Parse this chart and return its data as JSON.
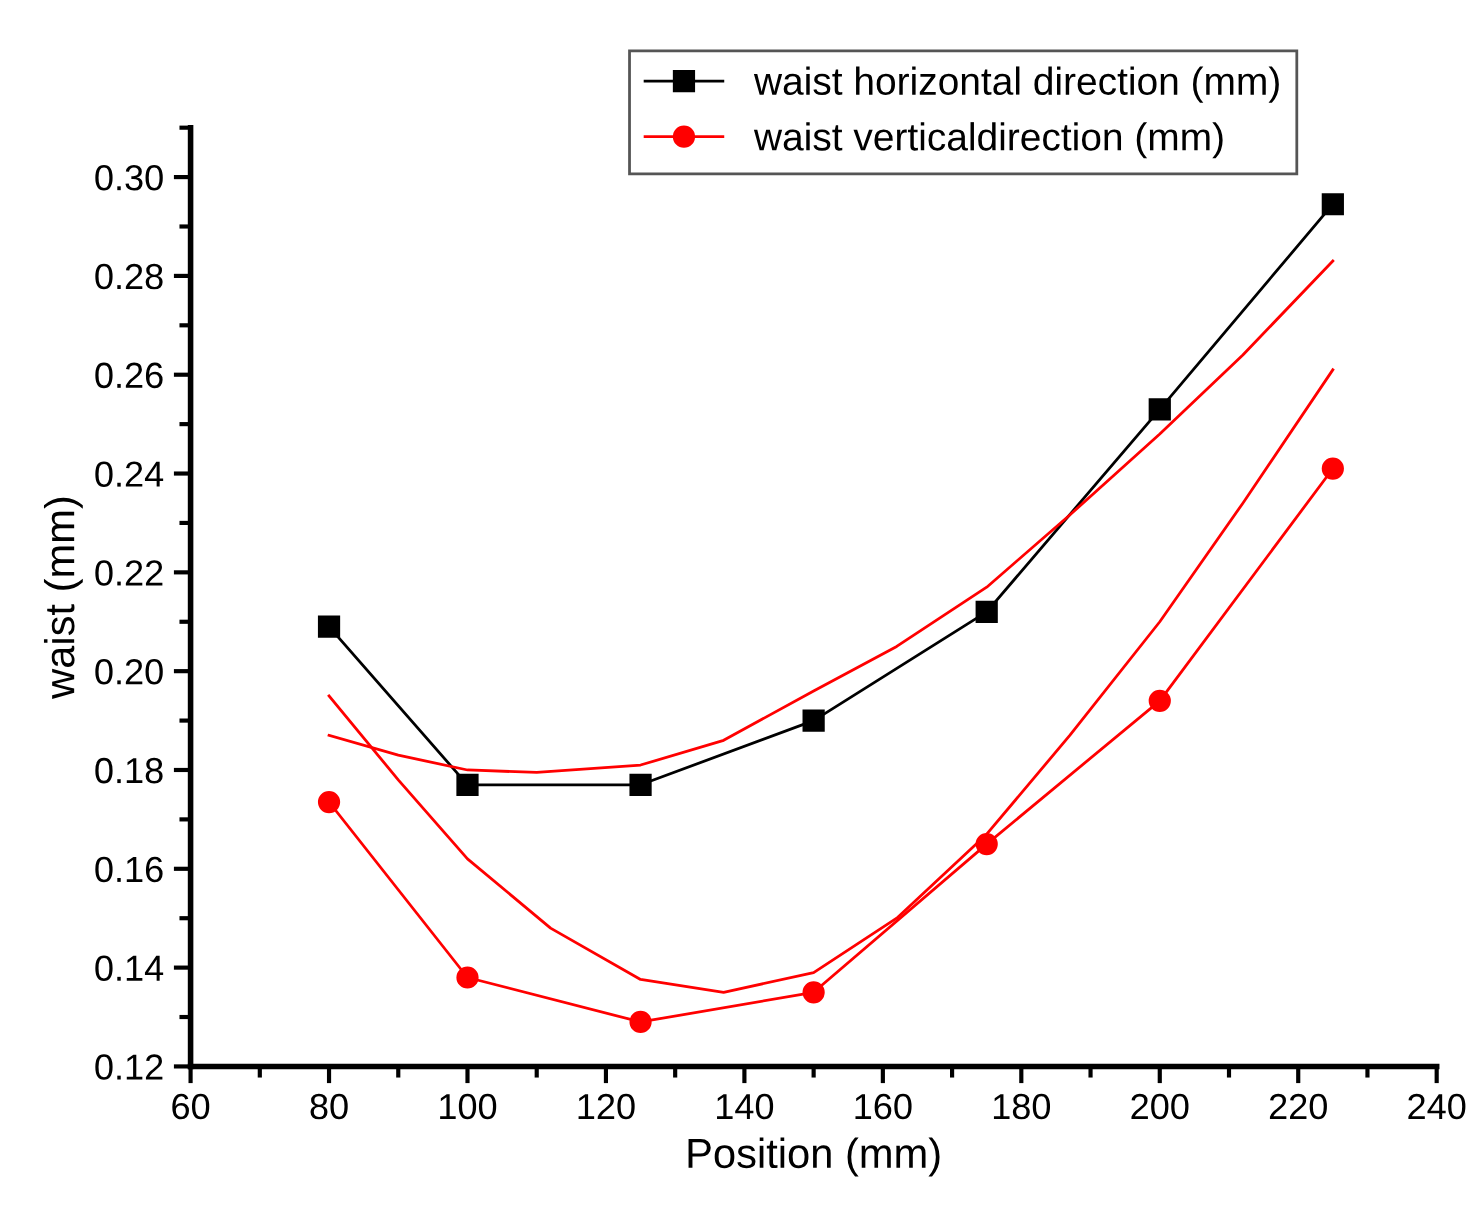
{
  "chart_data": {
    "type": "line",
    "xlabel": "Position (mm)",
    "ylabel": "waist (mm)",
    "x": [
      80,
      100,
      125,
      150,
      175,
      200,
      225
    ],
    "xlim": [
      60,
      240
    ],
    "xticks": [
      60,
      80,
      100,
      120,
      140,
      160,
      180,
      200,
      220,
      240
    ],
    "ylim": [
      0.12,
      0.31
    ],
    "yticks": [
      {
        "value": 0.12,
        "label": "0.12"
      },
      {
        "value": 0.14,
        "label": "0.14"
      },
      {
        "value": 0.16,
        "label": "0.16"
      },
      {
        "value": 0.18,
        "label": "0.18"
      },
      {
        "value": 0.2,
        "label": "0.20"
      },
      {
        "value": 0.22,
        "label": "0.22"
      },
      {
        "value": 0.24,
        "label": "0.24"
      },
      {
        "value": 0.26,
        "label": "0.26"
      },
      {
        "value": 0.28,
        "label": "0.28"
      },
      {
        "value": 0.3,
        "label": "0.30"
      }
    ],
    "grid": false,
    "legend": "top",
    "line_style": "solid",
    "series": [
      {
        "name": "waist horizontal direction (mm)",
        "color": "#000000",
        "marker": "square",
        "values": [
          0.209,
          0.177,
          0.177,
          0.19,
          0.212,
          0.253,
          0.2945
        ]
      },
      {
        "name": "waist verticaldirection (mm)",
        "color": "#ff0000",
        "marker": "circle",
        "values": [
          0.1735,
          0.138,
          0.129,
          0.135,
          0.165,
          0.194,
          0.241
        ]
      },
      {
        "color": "#ff0000",
        "marker": "none",
        "x": [
          80,
          90,
          100,
          110,
          125,
          137,
          150,
          162,
          175,
          187,
          200,
          212,
          225
        ],
        "values": [
          0.187,
          0.183,
          0.18,
          0.1795,
          0.181,
          0.186,
          0.196,
          0.205,
          0.217,
          0.2316,
          0.248,
          0.264,
          0.283
        ]
      },
      {
        "color": "#ff0000",
        "marker": "none",
        "x": [
          80,
          90,
          100,
          112,
          125,
          137,
          150,
          162,
          175,
          187,
          200,
          212,
          225
        ],
        "values": [
          0.195,
          0.178,
          0.162,
          0.148,
          0.1376,
          0.135,
          0.139,
          0.15,
          0.167,
          0.187,
          0.21,
          0.234,
          0.261
        ]
      }
    ]
  }
}
